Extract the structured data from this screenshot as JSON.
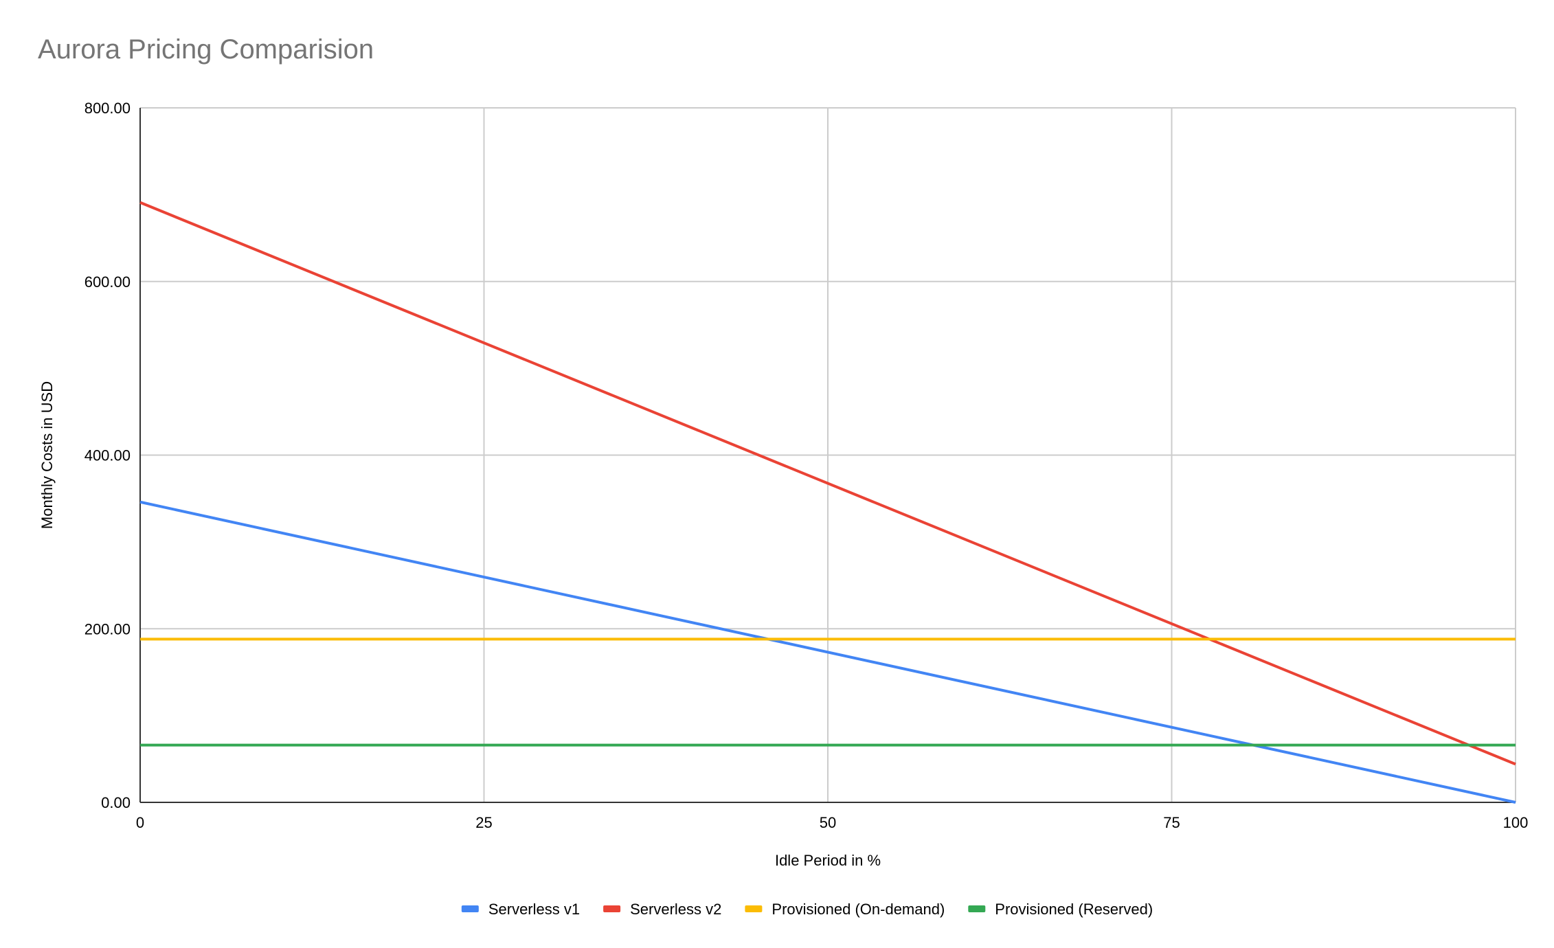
{
  "chart_data": {
    "type": "line",
    "title": "Aurora Pricing Comparision",
    "xlabel": "Idle Period in %",
    "ylabel": "Monthly Costs in USD",
    "xlim": [
      0,
      100
    ],
    "ylim": [
      0,
      800
    ],
    "x_ticks": [
      "0",
      "25",
      "50",
      "75",
      "100"
    ],
    "y_ticks": [
      "0.00",
      "200.00",
      "400.00",
      "600.00",
      "800.00"
    ],
    "grid": true,
    "legend_position": "bottom",
    "x": [
      0,
      100
    ],
    "series": [
      {
        "name": "Serverless v1",
        "color": "#4285f4",
        "values": [
          346,
          0
        ]
      },
      {
        "name": "Serverless v2",
        "color": "#ea4335",
        "values": [
          691,
          44
        ]
      },
      {
        "name": "Provisioned (On-demand)",
        "color": "#fbbc04",
        "values": [
          188,
          188
        ]
      },
      {
        "name": "Provisioned (Reserved)",
        "color": "#34a853",
        "values": [
          66,
          66
        ]
      }
    ]
  }
}
